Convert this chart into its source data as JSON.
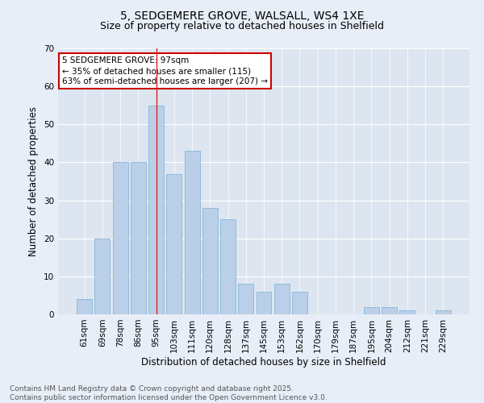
{
  "title1": "5, SEDGEMERE GROVE, WALSALL, WS4 1XE",
  "title2": "Size of property relative to detached houses in Shelfield",
  "xlabel": "Distribution of detached houses by size in Shelfield",
  "ylabel": "Number of detached properties",
  "categories": [
    "61sqm",
    "69sqm",
    "78sqm",
    "86sqm",
    "95sqm",
    "103sqm",
    "111sqm",
    "120sqm",
    "128sqm",
    "137sqm",
    "145sqm",
    "153sqm",
    "162sqm",
    "170sqm",
    "179sqm",
    "187sqm",
    "195sqm",
    "204sqm",
    "212sqm",
    "221sqm",
    "229sqm"
  ],
  "values": [
    4,
    20,
    40,
    40,
    55,
    37,
    43,
    28,
    25,
    8,
    6,
    8,
    6,
    0,
    0,
    0,
    2,
    2,
    1,
    0,
    1
  ],
  "bar_color": "#bad0e8",
  "bar_edgecolor": "#7aaed4",
  "highlight_index": 4,
  "highlight_color": "#dd2222",
  "annotation_text": "5 SEDGEMERE GROVE: 97sqm\n← 35% of detached houses are smaller (115)\n63% of semi-detached houses are larger (207) →",
  "annotation_box_facecolor": "#ffffff",
  "annotation_box_edgecolor": "#cc0000",
  "ylim": [
    0,
    70
  ],
  "yticks": [
    0,
    10,
    20,
    30,
    40,
    50,
    60,
    70
  ],
  "footer": "Contains HM Land Registry data © Crown copyright and database right 2025.\nContains public sector information licensed under the Open Government Licence v3.0.",
  "background_color": "#e8eef8",
  "plot_background": "#dde6f0",
  "grid_color": "#ffffff",
  "title_fontsize": 10,
  "subtitle_fontsize": 9,
  "axis_label_fontsize": 8.5,
  "tick_fontsize": 7.5,
  "annotation_fontsize": 7.5,
  "footer_fontsize": 6.5
}
